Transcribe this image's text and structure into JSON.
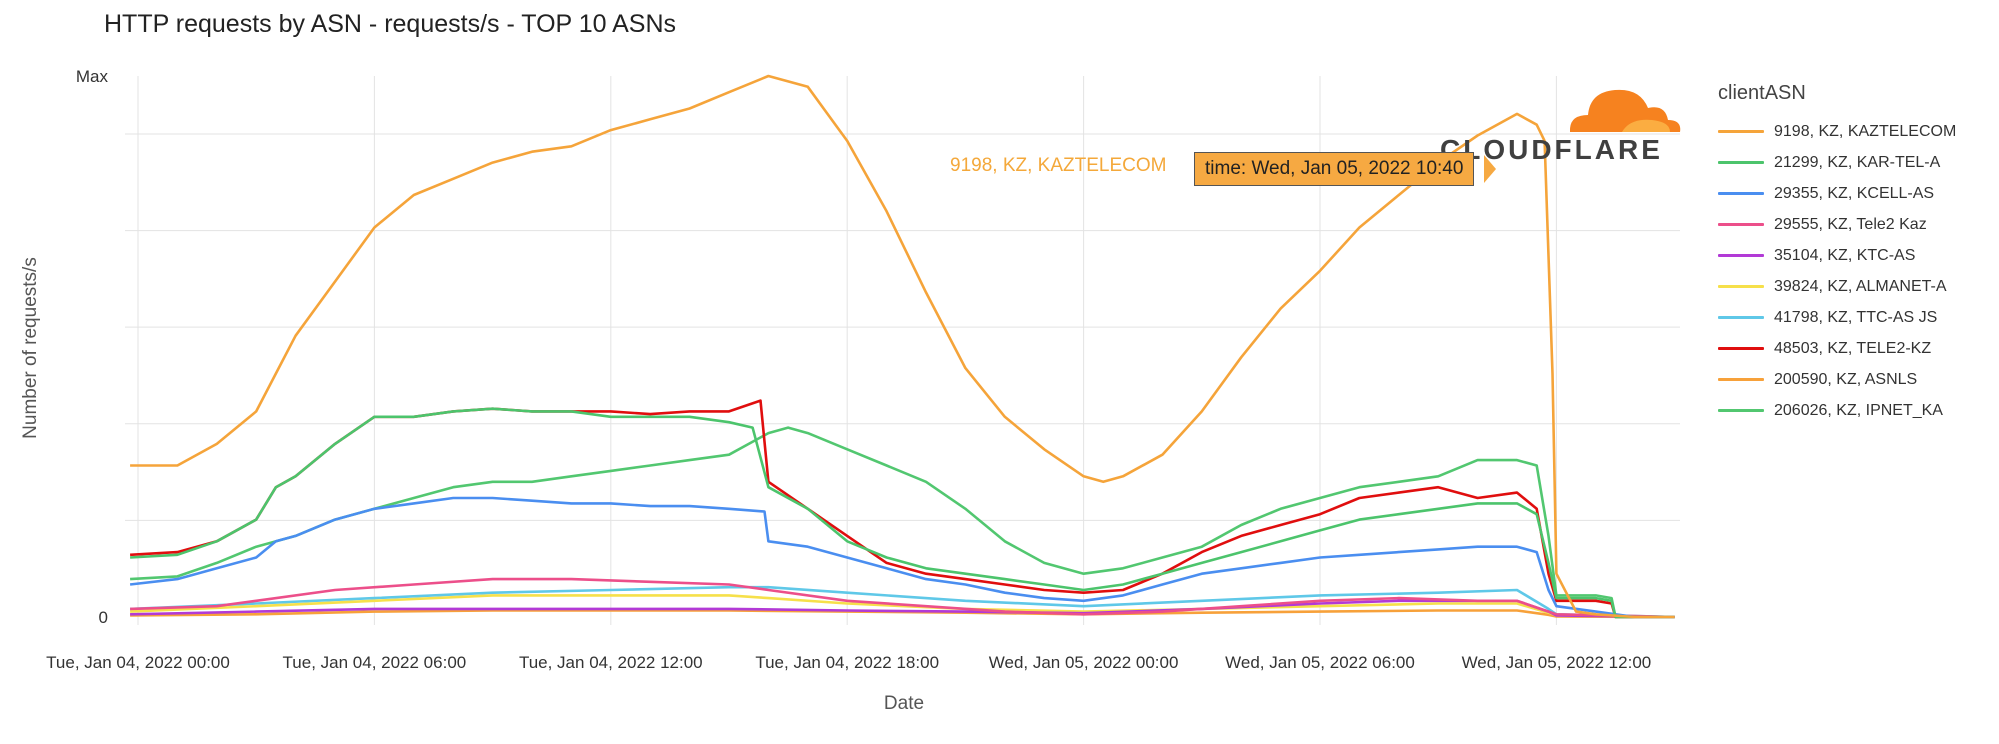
{
  "chart_data": {
    "type": "line",
    "title": "HTTP requests by ASN - requests/s - TOP 10 ASNs",
    "xlabel": "Date",
    "ylabel": "Number of requests/s",
    "y_tick_labels": [
      "0",
      "Max"
    ],
    "x_tick_labels": [
      "Tue, Jan 04, 2022 00:00",
      "Tue, Jan 04, 2022 06:00",
      "Tue, Jan 04, 2022 12:00",
      "Tue, Jan 04, 2022 18:00",
      "Wed, Jan 05, 2022 00:00",
      "Wed, Jan 05, 2022 06:00",
      "Wed, Jan 05, 2022 12:00"
    ],
    "x_unit": "hours from Tue, Jan 04, 2022 00:00",
    "ylim": [
      0,
      100
    ],
    "grid": true,
    "legend_title": "clientASN",
    "legend_position": "right",
    "series": [
      {
        "name": "9198, KZ, KAZTELECOM",
        "color": "#f5a43a",
        "points": [
          [
            -0.2,
            28
          ],
          [
            1,
            28
          ],
          [
            2,
            32
          ],
          [
            3,
            38
          ],
          [
            3.5,
            45
          ],
          [
            4,
            52
          ],
          [
            5,
            62
          ],
          [
            6,
            72
          ],
          [
            7,
            78
          ],
          [
            8,
            81
          ],
          [
            9,
            84
          ],
          [
            10,
            86
          ],
          [
            11,
            87
          ],
          [
            12,
            90
          ],
          [
            13,
            92
          ],
          [
            14,
            94
          ],
          [
            15,
            97
          ],
          [
            16,
            100
          ],
          [
            17,
            98
          ],
          [
            17.5,
            93
          ],
          [
            18,
            88
          ],
          [
            19,
            75
          ],
          [
            20,
            60
          ],
          [
            21,
            46
          ],
          [
            22,
            37
          ],
          [
            23,
            31
          ],
          [
            24,
            26
          ],
          [
            24.5,
            25
          ],
          [
            25,
            26
          ],
          [
            26,
            30
          ],
          [
            27,
            38
          ],
          [
            28,
            48
          ],
          [
            29,
            57
          ],
          [
            30,
            64
          ],
          [
            31,
            72
          ],
          [
            32,
            78
          ],
          [
            33,
            84
          ],
          [
            34,
            89
          ],
          [
            35,
            93
          ],
          [
            35.5,
            91
          ],
          [
            35.7,
            88
          ],
          [
            35.9,
            45
          ],
          [
            36,
            8
          ],
          [
            36.5,
            1
          ],
          [
            37,
            0.5
          ],
          [
            38,
            0
          ],
          [
            39,
            0
          ]
        ]
      },
      {
        "name": "21299, KZ, KAR-TEL-A",
        "color": "#4cc46c",
        "points": [
          [
            -0.2,
            11
          ],
          [
            1,
            11.5
          ],
          [
            2,
            14
          ],
          [
            3,
            18
          ],
          [
            3.5,
            24
          ],
          [
            4,
            26
          ],
          [
            5,
            32
          ],
          [
            6,
            37
          ],
          [
            7,
            37
          ],
          [
            8,
            38
          ],
          [
            9,
            38.5
          ],
          [
            10,
            38
          ],
          [
            11,
            38
          ],
          [
            12,
            37
          ],
          [
            13,
            37
          ],
          [
            14,
            37
          ],
          [
            15,
            36
          ],
          [
            15.6,
            35
          ],
          [
            16,
            24
          ],
          [
            17,
            20
          ],
          [
            18,
            14
          ],
          [
            19,
            11
          ],
          [
            20,
            9
          ],
          [
            21,
            8
          ],
          [
            22,
            7
          ],
          [
            23,
            6
          ],
          [
            24,
            5
          ],
          [
            25,
            6
          ],
          [
            26,
            8
          ],
          [
            27,
            10
          ],
          [
            28,
            12
          ],
          [
            29,
            14
          ],
          [
            30,
            16
          ],
          [
            31,
            18
          ],
          [
            32,
            19
          ],
          [
            33,
            20
          ],
          [
            34,
            21
          ],
          [
            35,
            21
          ],
          [
            35.5,
            19
          ],
          [
            35.8,
            10
          ],
          [
            36,
            3.5
          ],
          [
            37,
            3.5
          ],
          [
            37.4,
            3
          ],
          [
            37.5,
            0
          ],
          [
            39,
            0
          ]
        ]
      },
      {
        "name": "29355, KZ, KCELL-AS",
        "color": "#4a8ef0",
        "points": [
          [
            -0.2,
            6
          ],
          [
            1,
            7
          ],
          [
            2,
            9
          ],
          [
            3,
            11
          ],
          [
            3.5,
            14
          ],
          [
            4,
            15
          ],
          [
            5,
            18
          ],
          [
            6,
            20
          ],
          [
            7,
            21
          ],
          [
            8,
            22
          ],
          [
            9,
            22
          ],
          [
            10,
            21.5
          ],
          [
            11,
            21
          ],
          [
            12,
            21
          ],
          [
            13,
            20.5
          ],
          [
            14,
            20.5
          ],
          [
            15,
            20
          ],
          [
            15.9,
            19.5
          ],
          [
            16,
            14
          ],
          [
            17,
            13
          ],
          [
            18,
            11
          ],
          [
            19,
            9
          ],
          [
            20,
            7
          ],
          [
            21,
            6
          ],
          [
            22,
            4.5
          ],
          [
            23,
            3.5
          ],
          [
            24,
            3
          ],
          [
            25,
            4
          ],
          [
            26,
            6
          ],
          [
            27,
            8
          ],
          [
            28,
            9
          ],
          [
            29,
            10
          ],
          [
            30,
            11
          ],
          [
            31,
            11.5
          ],
          [
            32,
            12
          ],
          [
            33,
            12.5
          ],
          [
            34,
            13
          ],
          [
            35,
            13
          ],
          [
            35.5,
            12
          ],
          [
            35.8,
            5
          ],
          [
            36,
            2
          ],
          [
            37,
            1
          ],
          [
            38,
            0
          ],
          [
            39,
            0
          ]
        ]
      },
      {
        "name": "29555, KZ, Tele2 Kaz",
        "color": "#ec4f8a",
        "points": [
          [
            -0.2,
            1.5
          ],
          [
            2,
            2
          ],
          [
            3,
            3
          ],
          [
            5,
            5
          ],
          [
            7,
            6
          ],
          [
            9,
            7
          ],
          [
            11,
            7
          ],
          [
            13,
            6.5
          ],
          [
            15,
            6
          ],
          [
            16,
            5
          ],
          [
            18,
            3
          ],
          [
            20,
            2
          ],
          [
            22,
            1
          ],
          [
            24,
            0.5
          ],
          [
            26,
            1
          ],
          [
            28,
            2
          ],
          [
            30,
            3
          ],
          [
            32,
            3.5
          ],
          [
            34,
            3
          ],
          [
            35,
            3
          ],
          [
            35.8,
            1
          ],
          [
            36,
            0.5
          ],
          [
            39,
            0
          ]
        ]
      },
      {
        "name": "35104, KZ, KTC-AS",
        "color": "#b23ad6",
        "points": [
          [
            -0.2,
            0.5
          ],
          [
            3,
            1
          ],
          [
            6,
            1.5
          ],
          [
            9,
            1.5
          ],
          [
            12,
            1.5
          ],
          [
            15,
            1.5
          ],
          [
            18,
            1.2
          ],
          [
            21,
            1
          ],
          [
            24,
            0.7
          ],
          [
            27,
            1.5
          ],
          [
            30,
            2.5
          ],
          [
            32,
            3
          ],
          [
            34,
            3
          ],
          [
            35,
            3
          ],
          [
            35.8,
            1
          ],
          [
            36,
            0.3
          ],
          [
            39,
            0
          ]
        ]
      },
      {
        "name": "39824, KZ, ALMANET-A",
        "color": "#f6e04a",
        "points": [
          [
            -0.2,
            1
          ],
          [
            3,
            2
          ],
          [
            6,
            3
          ],
          [
            9,
            4
          ],
          [
            12,
            4
          ],
          [
            15,
            4
          ],
          [
            16,
            3.5
          ],
          [
            18,
            2.5
          ],
          [
            21,
            1.5
          ],
          [
            24,
            1
          ],
          [
            27,
            1.5
          ],
          [
            30,
            2
          ],
          [
            33,
            2.5
          ],
          [
            35,
            2.5
          ],
          [
            35.8,
            0.8
          ],
          [
            36,
            0.3
          ],
          [
            39,
            0
          ]
        ]
      },
      {
        "name": "41798, KZ, TTC-AS JS",
        "color": "#5fc8e8",
        "points": [
          [
            -0.2,
            1.5
          ],
          [
            3,
            2.5
          ],
          [
            6,
            3.5
          ],
          [
            9,
            4.5
          ],
          [
            12,
            5
          ],
          [
            15,
            5.5
          ],
          [
            16,
            5.5
          ],
          [
            18,
            4.5
          ],
          [
            21,
            3
          ],
          [
            24,
            2
          ],
          [
            27,
            3
          ],
          [
            30,
            4
          ],
          [
            33,
            4.5
          ],
          [
            35,
            5
          ],
          [
            35.8,
            1.5
          ],
          [
            36,
            0.5
          ],
          [
            39,
            0
          ]
        ]
      },
      {
        "name": "48503, KZ, TELE2-KZ",
        "color": "#e00e0e",
        "points": [
          [
            -0.2,
            11.5
          ],
          [
            1,
            12
          ],
          [
            2,
            14
          ],
          [
            3,
            18
          ],
          [
            3.5,
            24
          ],
          [
            4,
            26
          ],
          [
            5,
            32
          ],
          [
            6,
            37
          ],
          [
            7,
            37
          ],
          [
            8,
            38
          ],
          [
            9,
            38.5
          ],
          [
            10,
            38
          ],
          [
            11,
            38
          ],
          [
            12,
            38
          ],
          [
            13,
            37.5
          ],
          [
            14,
            38
          ],
          [
            15,
            38
          ],
          [
            15.8,
            40
          ],
          [
            16,
            25
          ],
          [
            17,
            20
          ],
          [
            18,
            15
          ],
          [
            19,
            10
          ],
          [
            20,
            8
          ],
          [
            21,
            7
          ],
          [
            22,
            6
          ],
          [
            23,
            5
          ],
          [
            24,
            4.5
          ],
          [
            25,
            5
          ],
          [
            26,
            8
          ],
          [
            27,
            12
          ],
          [
            28,
            15
          ],
          [
            29,
            17
          ],
          [
            30,
            19
          ],
          [
            31,
            22
          ],
          [
            32,
            23
          ],
          [
            33,
            24
          ],
          [
            34,
            22
          ],
          [
            35,
            23
          ],
          [
            35.5,
            20
          ],
          [
            35.8,
            8
          ],
          [
            36,
            3
          ],
          [
            37,
            3
          ],
          [
            37.4,
            2.5
          ],
          [
            37.5,
            0
          ],
          [
            39,
            0
          ]
        ]
      },
      {
        "name": "200590, KZ, ASNLS",
        "color": "#f7a13a",
        "points": [
          [
            -0.2,
            0.3
          ],
          [
            3,
            0.5
          ],
          [
            6,
            1
          ],
          [
            9,
            1.2
          ],
          [
            12,
            1.2
          ],
          [
            15,
            1.2
          ],
          [
            18,
            1
          ],
          [
            21,
            0.8
          ],
          [
            24,
            0.5
          ],
          [
            27,
            0.8
          ],
          [
            30,
            1
          ],
          [
            33,
            1.2
          ],
          [
            35,
            1.2
          ],
          [
            35.8,
            0.4
          ],
          [
            36,
            0.1
          ],
          [
            39,
            0
          ]
        ]
      },
      {
        "name": "206026, KZ, IPNET_KA",
        "color": "#52c770",
        "points": [
          [
            -0.2,
            7
          ],
          [
            1,
            7.5
          ],
          [
            2,
            10
          ],
          [
            3,
            13
          ],
          [
            4,
            15
          ],
          [
            5,
            18
          ],
          [
            6,
            20
          ],
          [
            7,
            22
          ],
          [
            8,
            24
          ],
          [
            9,
            25
          ],
          [
            10,
            25
          ],
          [
            11,
            26
          ],
          [
            12,
            27
          ],
          [
            13,
            28
          ],
          [
            14,
            29
          ],
          [
            15,
            30
          ],
          [
            16,
            34
          ],
          [
            16.5,
            35
          ],
          [
            17,
            34
          ],
          [
            18,
            31
          ],
          [
            19,
            28
          ],
          [
            20,
            25
          ],
          [
            21,
            20
          ],
          [
            22,
            14
          ],
          [
            23,
            10
          ],
          [
            24,
            8
          ],
          [
            25,
            9
          ],
          [
            26,
            11
          ],
          [
            27,
            13
          ],
          [
            28,
            17
          ],
          [
            29,
            20
          ],
          [
            30,
            22
          ],
          [
            31,
            24
          ],
          [
            32,
            25
          ],
          [
            33,
            26
          ],
          [
            34,
            29
          ],
          [
            35,
            29
          ],
          [
            35.5,
            28
          ],
          [
            35.8,
            15
          ],
          [
            36,
            4
          ],
          [
            37,
            4
          ],
          [
            37.4,
            3.5
          ],
          [
            37.5,
            0
          ],
          [
            39,
            0
          ]
        ]
      }
    ],
    "annotations": {
      "hover_series": "9198, KZ, KAZTELECOM",
      "hover_label": "time: Wed, Jan 05, 2022 10:40"
    }
  },
  "logo": {
    "text": "CLOUDFLARE",
    "name": "cloudflare-logo"
  }
}
